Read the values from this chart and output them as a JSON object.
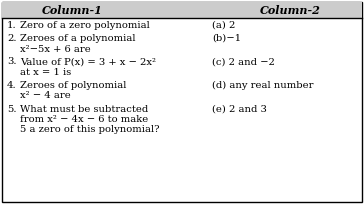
{
  "col1_header": "Column-1",
  "col2_header": "Column-2",
  "bg_color": "#ffffff",
  "header_bg": "#d0d0d0",
  "border_color": "#000000",
  "font_size": 7.2,
  "header_font_size": 8.0,
  "rows": [
    {
      "num": "1.",
      "col1_lines": [
        "Zero of a zero polynomial"
      ],
      "col2": "(a) 2",
      "col2_line": 0
    },
    {
      "num": "2.",
      "col1_lines": [
        "Zeroes of a polynomial",
        "x²−5x + 6 are"
      ],
      "col2": "(b)−1",
      "col2_line": 0
    },
    {
      "num": "3.",
      "col1_lines": [
        "Value of P(x) = 3 + x − 2x²",
        "at x = 1 is"
      ],
      "col2": "(c) 2 and −2",
      "col2_line": 0
    },
    {
      "num": "4.",
      "col1_lines": [
        "Zeroes of polynomial",
        "x² − 4 are"
      ],
      "col2": "(d) any real number",
      "col2_line": 0
    },
    {
      "num": "5.",
      "col1_lines": [
        "What must be subtracted",
        "from x² − 4x − 6 to make",
        "5 a zero of this polynomial?"
      ],
      "col2": "(e) 2 and 3",
      "col2_line": 0
    }
  ]
}
